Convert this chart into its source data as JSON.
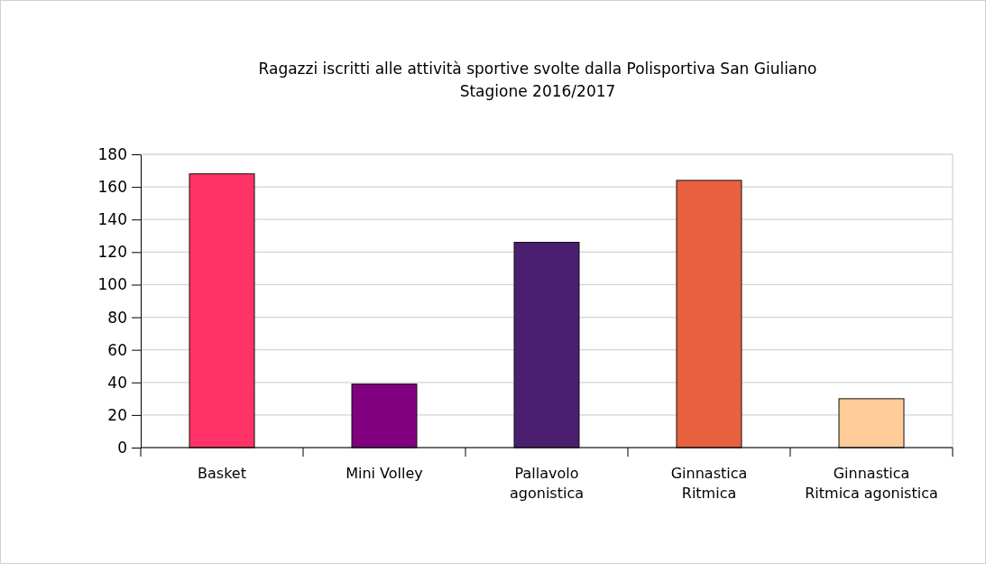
{
  "chart_data": {
    "type": "bar",
    "title": "Ragazzi iscritti alle attività sportive svolte dalla Polisportiva San Giuliano\nStagione 2016/2017",
    "categories": [
      "Basket",
      "Mini Volley",
      "Pallavolo agonistica",
      "Ginnastica Ritmica",
      "Ginnastica Ritmica agonistica"
    ],
    "values": [
      168,
      39,
      126,
      164,
      30
    ],
    "colors": [
      "#ff3366",
      "#800080",
      "#4b1f6f",
      "#e9603f",
      "#ffcc99"
    ],
    "ylim": [
      0,
      180
    ],
    "yticks": [
      0,
      20,
      40,
      60,
      80,
      100,
      120,
      140,
      160,
      180
    ],
    "grid": "y"
  }
}
